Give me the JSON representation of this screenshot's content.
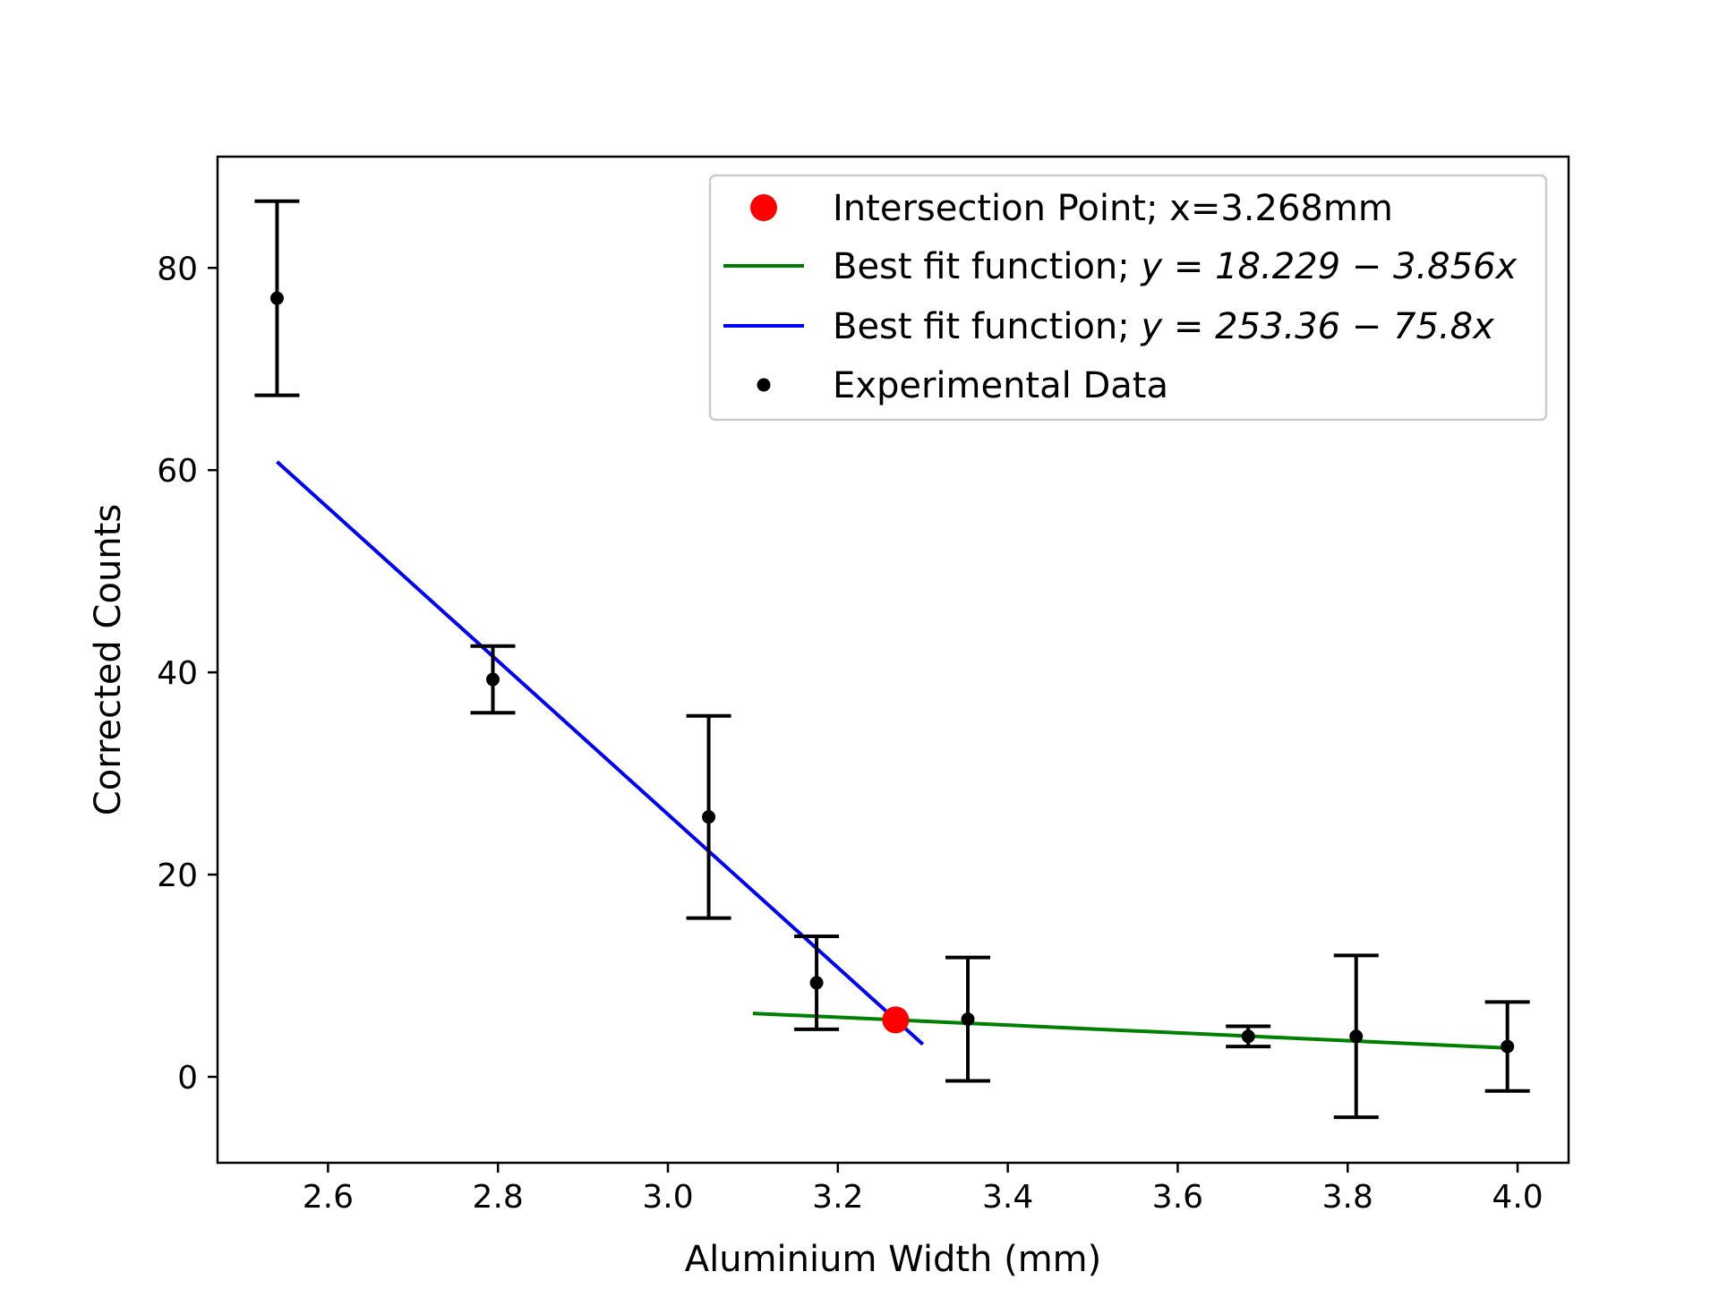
{
  "chart_data": {
    "type": "scatter",
    "title": "",
    "xlabel": "Aluminium Width (mm)",
    "ylabel": "Corrected Counts",
    "xlim": [
      2.47,
      4.06
    ],
    "ylim": [
      -8.5,
      91
    ],
    "xticks": [
      "2.6",
      "2.8",
      "3.0",
      "3.2",
      "3.4",
      "3.6",
      "3.8",
      "4.0"
    ],
    "yticks": [
      "0",
      "20",
      "40",
      "60",
      "80"
    ],
    "grid": false,
    "legend_position": "upper right",
    "series": [
      {
        "name": "Intersection Point; x=3.268mm",
        "kind": "point",
        "color": "#ff0000",
        "points": [
          {
            "x": 3.268,
            "y": 5.63
          }
        ]
      },
      {
        "name": "Best fit function; y = 18.229 − 3.856x",
        "kind": "line",
        "color": "#008000",
        "intercept": 18.229,
        "slope": -3.856,
        "x_range": [
          3.1,
          3.99
        ]
      },
      {
        "name": "Best fit function; y = 253.36 − 75.8x",
        "kind": "line",
        "color": "#0000ff",
        "intercept": 253.36,
        "slope": -75.8,
        "x_range": [
          2.54,
          3.3
        ]
      },
      {
        "name": "Experimental Data",
        "kind": "errorbar",
        "color": "#000000",
        "points": [
          {
            "x": 2.54,
            "y": 77.0,
            "err": 9.6
          },
          {
            "x": 2.794,
            "y": 39.3,
            "err": 3.3
          },
          {
            "x": 3.048,
            "y": 25.7,
            "err": 10.0
          },
          {
            "x": 3.175,
            "y": 9.3,
            "err": 4.6
          },
          {
            "x": 3.353,
            "y": 5.7,
            "err": 6.1
          },
          {
            "x": 3.683,
            "y": 4.0,
            "err": 1.0
          },
          {
            "x": 3.81,
            "y": 4.0,
            "err": 8.0
          },
          {
            "x": 3.988,
            "y": 3.0,
            "err": 4.4
          }
        ]
      }
    ],
    "legend": {
      "entries": [
        {
          "prefix": "Intersection Point; x=3.268mm",
          "math": ""
        },
        {
          "prefix": "Best fit function; ",
          "math": "y = 18.229 − 3.856x"
        },
        {
          "prefix": "Best fit function; ",
          "math": "y = 253.36 − 75.8x"
        },
        {
          "prefix": "Experimental Data",
          "math": ""
        }
      ]
    }
  }
}
